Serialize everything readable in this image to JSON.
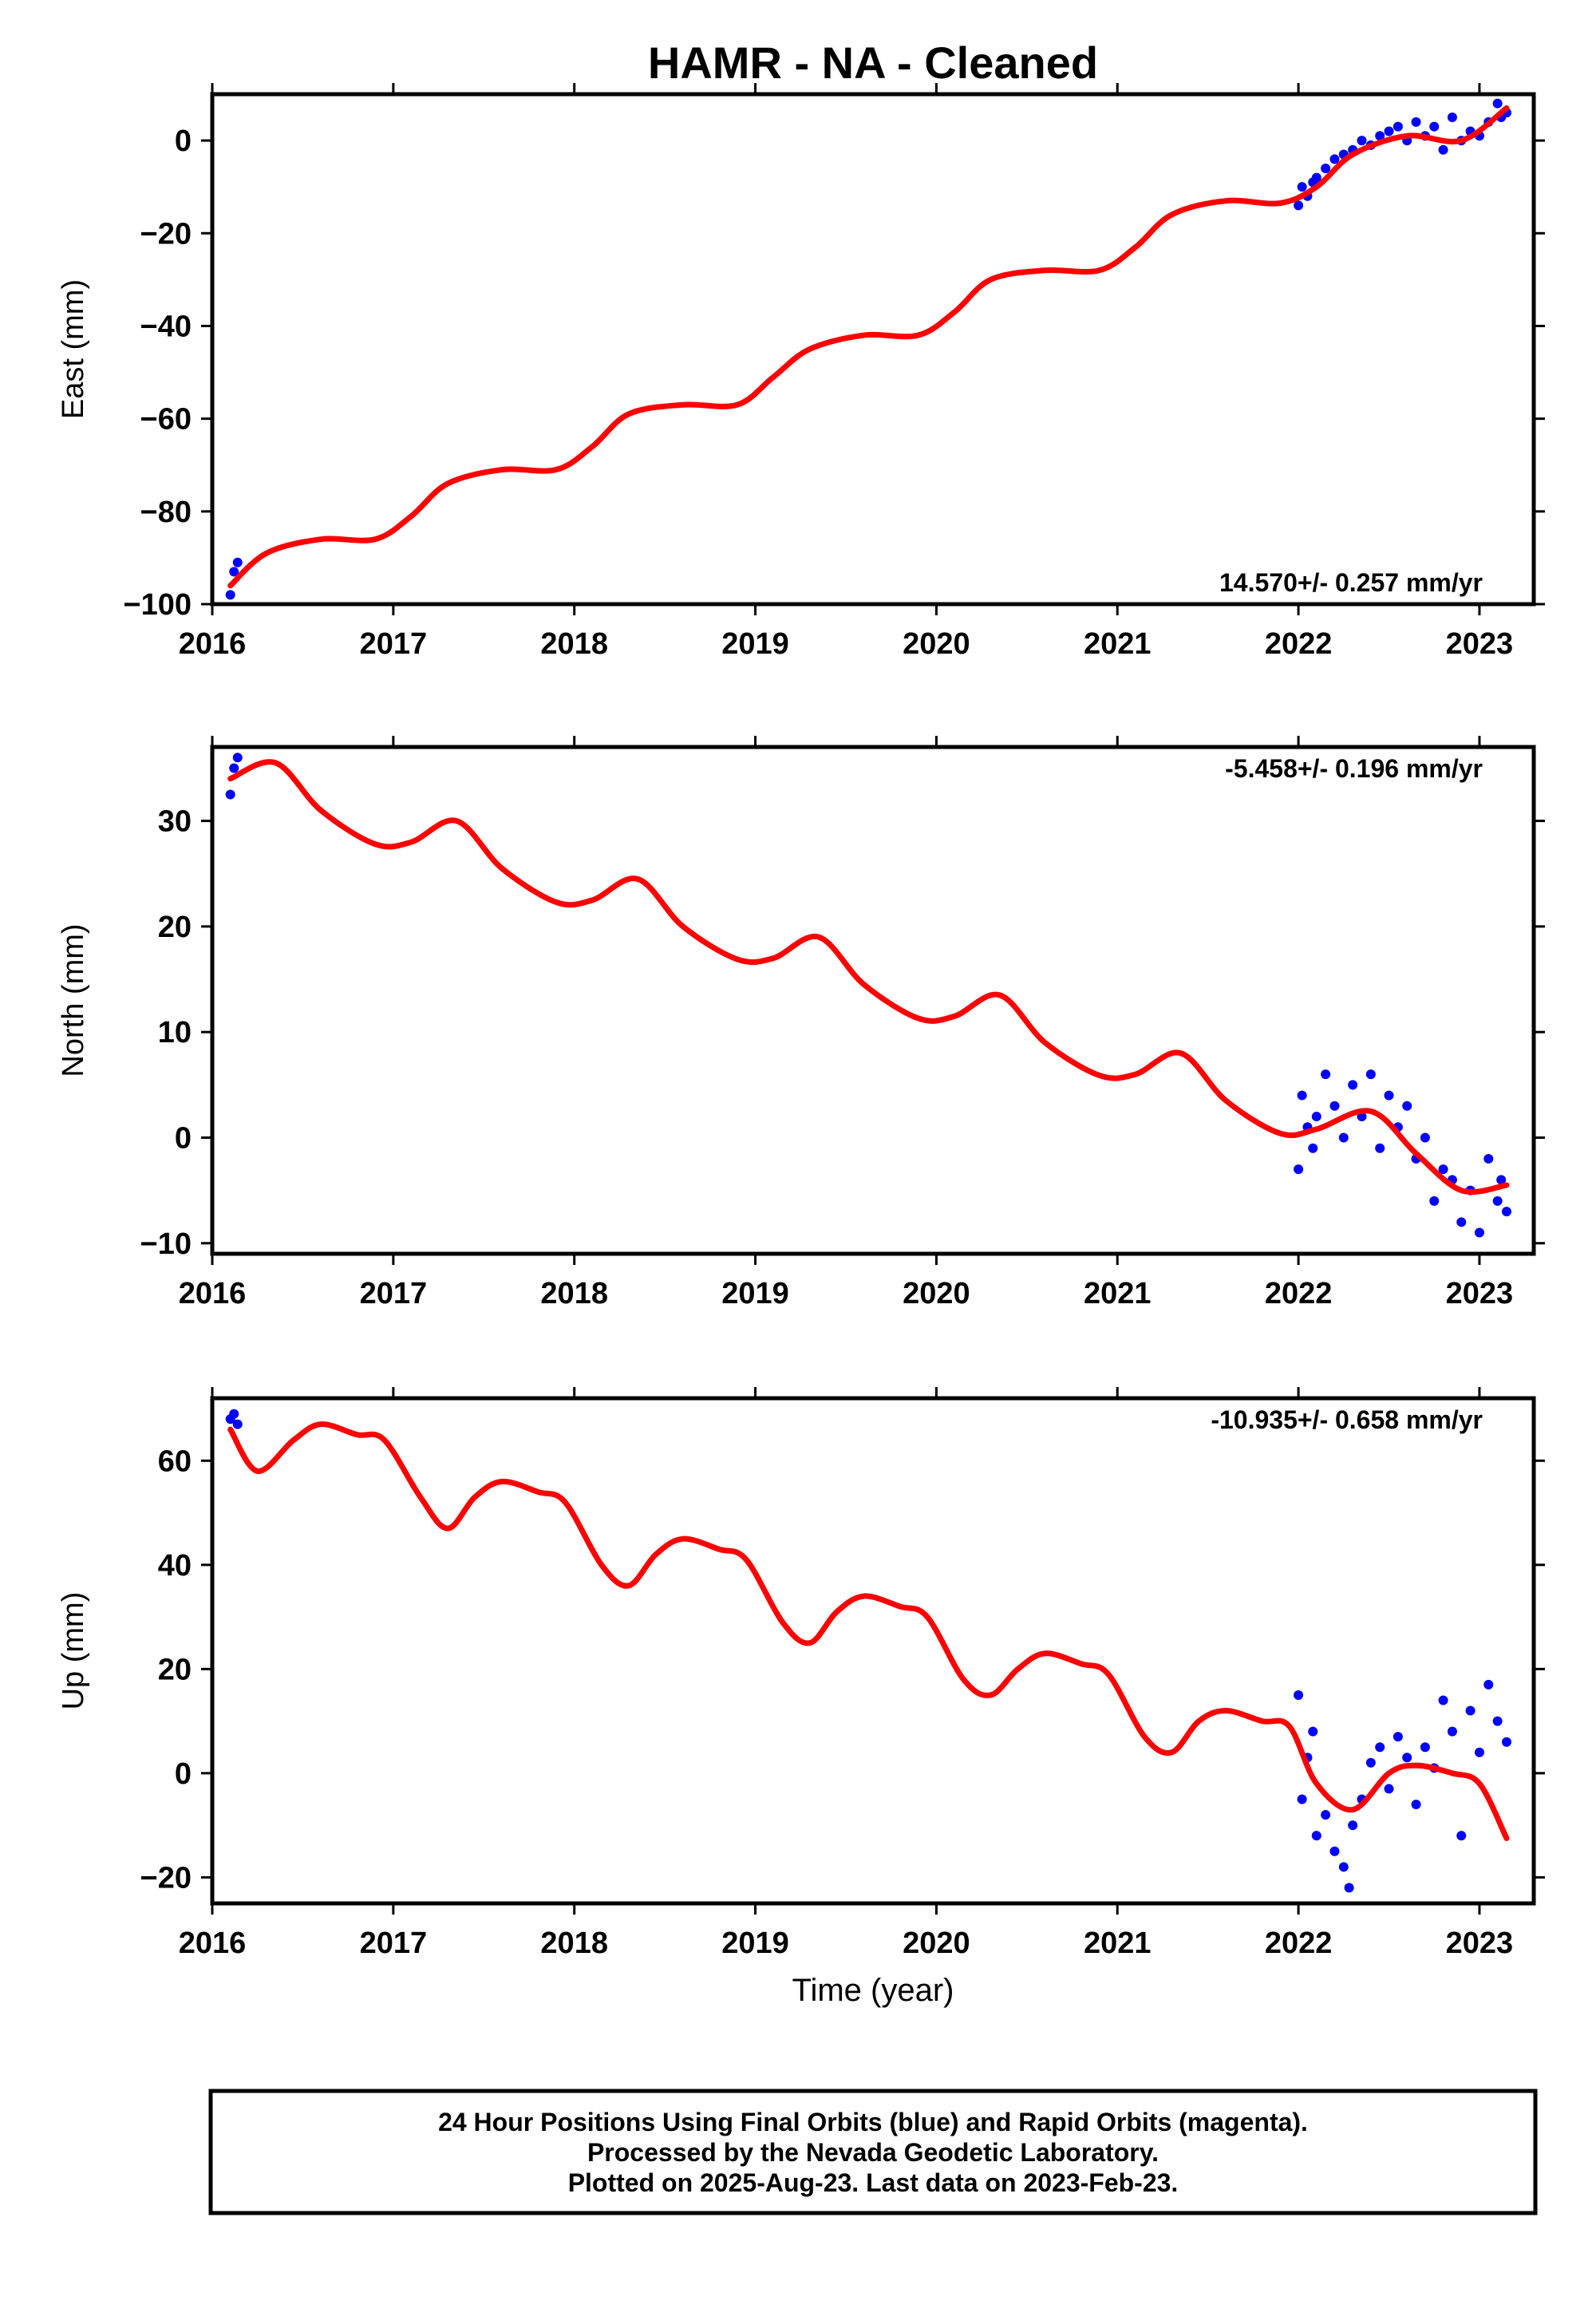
{
  "title": "HAMR  - NA - Cleaned",
  "xlabel": "Time (year)",
  "footer": {
    "line1": "24 Hour Positions Using Final Orbits (blue) and Rapid Orbits (magenta).",
    "line2": "Processed by the Nevada Geodetic Laboratory.",
    "line3": "Plotted on 2025-Aug-23. Last data on 2023-Feb-23."
  },
  "colors": {
    "data": "#0000ff",
    "model": "#ff0000",
    "frame": "#000000"
  },
  "chart_data": [
    {
      "type": "scatter",
      "ylabel": "East (mm)",
      "rate_text": "14.570+/- 0.257 mm/yr",
      "rate_position": "bottom-right",
      "xlim": [
        2016.0,
        2023.3
      ],
      "ylim": [
        -100,
        10
      ],
      "xticks": [
        2016,
        2017,
        2018,
        2019,
        2020,
        2021,
        2022,
        2023
      ],
      "yticks": [
        0,
        -20,
        -40,
        -60,
        -80,
        -100
      ],
      "model": {
        "name": "model",
        "x": [
          2016.1,
          2016.3,
          2016.6,
          2016.9,
          2017.1,
          2017.3,
          2017.6,
          2017.9,
          2018.1,
          2018.3,
          2018.6,
          2018.9,
          2019.1,
          2019.3,
          2019.6,
          2019.9,
          2020.1,
          2020.3,
          2020.6,
          2020.9,
          2021.1,
          2021.3,
          2021.6,
          2021.9,
          2022.1,
          2022.3,
          2022.6,
          2022.9,
          2023.15
        ],
        "y": [
          -96,
          -89,
          -86,
          -86,
          -81,
          -74,
          -71,
          -71,
          -66,
          -59,
          -57,
          -57,
          -51,
          -45,
          -42,
          -42,
          -37,
          -30,
          -28,
          -28,
          -23,
          -16,
          -13,
          -13.5,
          -10,
          -3,
          1,
          0,
          7
        ]
      },
      "points": {
        "name": "data",
        "x": [
          2016.1,
          2016.12,
          2016.14,
          2022.0,
          2022.02,
          2022.05,
          2022.08,
          2022.1,
          2022.15,
          2022.2,
          2022.25,
          2022.3,
          2022.35,
          2022.4,
          2022.45,
          2022.5,
          2022.55,
          2022.6,
          2022.65,
          2022.7,
          2022.75,
          2022.8,
          2022.85,
          2022.9,
          2022.95,
          2023.0,
          2023.05,
          2023.1,
          2023.12,
          2023.15
        ],
        "y": [
          -98,
          -93,
          -91,
          -14,
          -10,
          -12,
          -9,
          -8,
          -6,
          -4,
          -3,
          -2,
          0,
          -1,
          1,
          2,
          3,
          0,
          4,
          1,
          3,
          -2,
          5,
          0,
          2,
          1,
          4,
          8,
          5,
          6
        ]
      }
    },
    {
      "type": "scatter",
      "ylabel": "North (mm)",
      "rate_text": "-5.458+/- 0.196 mm/yr",
      "rate_position": "top-right",
      "xlim": [
        2016.0,
        2023.3
      ],
      "ylim": [
        -11,
        37
      ],
      "xticks": [
        2016,
        2017,
        2018,
        2019,
        2020,
        2021,
        2022,
        2023
      ],
      "yticks": [
        30,
        20,
        10,
        0,
        -10
      ],
      "model": {
        "name": "model",
        "x": [
          2016.1,
          2016.35,
          2016.6,
          2016.9,
          2017.1,
          2017.35,
          2017.6,
          2017.9,
          2018.1,
          2018.35,
          2018.6,
          2018.9,
          2019.1,
          2019.35,
          2019.6,
          2019.9,
          2020.1,
          2020.35,
          2020.6,
          2020.9,
          2021.1,
          2021.35,
          2021.6,
          2021.9,
          2022.1,
          2022.4,
          2022.65,
          2022.9,
          2023.15
        ],
        "y": [
          34,
          35.5,
          31,
          27.8,
          28,
          30,
          25.5,
          22.3,
          22.5,
          24.5,
          20,
          16.9,
          17,
          19,
          14.5,
          11.3,
          11.5,
          13.5,
          9,
          5.9,
          6,
          8,
          3.5,
          0.4,
          0.8,
          2.5,
          -1.5,
          -5,
          -4.5
        ]
      },
      "points": {
        "name": "data",
        "x": [
          2016.1,
          2016.12,
          2016.14,
          2022.0,
          2022.02,
          2022.05,
          2022.08,
          2022.1,
          2022.15,
          2022.2,
          2022.25,
          2022.3,
          2022.35,
          2022.4,
          2022.45,
          2022.5,
          2022.55,
          2022.6,
          2022.65,
          2022.7,
          2022.75,
          2022.8,
          2022.85,
          2022.9,
          2022.95,
          2023.0,
          2023.05,
          2023.1,
          2023.12,
          2023.15
        ],
        "y": [
          32.5,
          35,
          36,
          -3,
          4,
          1,
          -1,
          2,
          6,
          3,
          0,
          5,
          2,
          6,
          -1,
          4,
          1,
          3,
          -2,
          0,
          -6,
          -3,
          -4,
          -8,
          -5,
          -9,
          -2,
          -6,
          -4,
          -7
        ]
      }
    },
    {
      "type": "scatter",
      "ylabel": "Up (mm)",
      "rate_text": "-10.935+/- 0.658 mm/yr",
      "rate_position": "top-right",
      "xlim": [
        2016.0,
        2023.3
      ],
      "ylim": [
        -25,
        72
      ],
      "xticks": [
        2016,
        2017,
        2018,
        2019,
        2020,
        2021,
        2022,
        2023
      ],
      "yticks": [
        60,
        40,
        20,
        0,
        -20
      ],
      "model": {
        "name": "model",
        "x": [
          2016.1,
          2016.25,
          2016.45,
          2016.6,
          2016.8,
          2016.95,
          2017.15,
          2017.3,
          2017.45,
          2017.6,
          2017.8,
          2017.95,
          2018.15,
          2018.3,
          2018.45,
          2018.6,
          2018.8,
          2018.95,
          2019.15,
          2019.3,
          2019.45,
          2019.6,
          2019.8,
          2019.95,
          2020.15,
          2020.3,
          2020.45,
          2020.6,
          2020.8,
          2020.95,
          2021.15,
          2021.3,
          2021.45,
          2021.6,
          2021.8,
          2021.95,
          2022.1,
          2022.3,
          2022.5,
          2022.65,
          2022.85,
          2023.0,
          2023.15
        ],
        "y": [
          66,
          58,
          64,
          67,
          65,
          64,
          53,
          47,
          53,
          56,
          54,
          52,
          40,
          36,
          42,
          45,
          43,
          41,
          29,
          25,
          31,
          34,
          32,
          30,
          18,
          15,
          20,
          23,
          21,
          19,
          7,
          4,
          10,
          12,
          10,
          9,
          -2,
          -7,
          0,
          1.5,
          0,
          -2,
          -12.5
        ]
      },
      "points": {
        "name": "data",
        "x": [
          2016.1,
          2016.12,
          2016.14,
          2022.0,
          2022.02,
          2022.05,
          2022.08,
          2022.1,
          2022.15,
          2022.2,
          2022.25,
          2022.28,
          2022.3,
          2022.35,
          2022.4,
          2022.45,
          2022.5,
          2022.55,
          2022.6,
          2022.65,
          2022.7,
          2022.75,
          2022.8,
          2022.85,
          2022.9,
          2022.95,
          2023.0,
          2023.05,
          2023.1,
          2023.15
        ],
        "y": [
          68,
          69,
          67,
          15,
          -5,
          3,
          8,
          -12,
          -8,
          -15,
          -18,
          -22,
          -10,
          -5,
          2,
          5,
          -3,
          7,
          3,
          -6,
          5,
          1,
          14,
          8,
          -12,
          12,
          4,
          17,
          10,
          6
        ]
      }
    }
  ]
}
